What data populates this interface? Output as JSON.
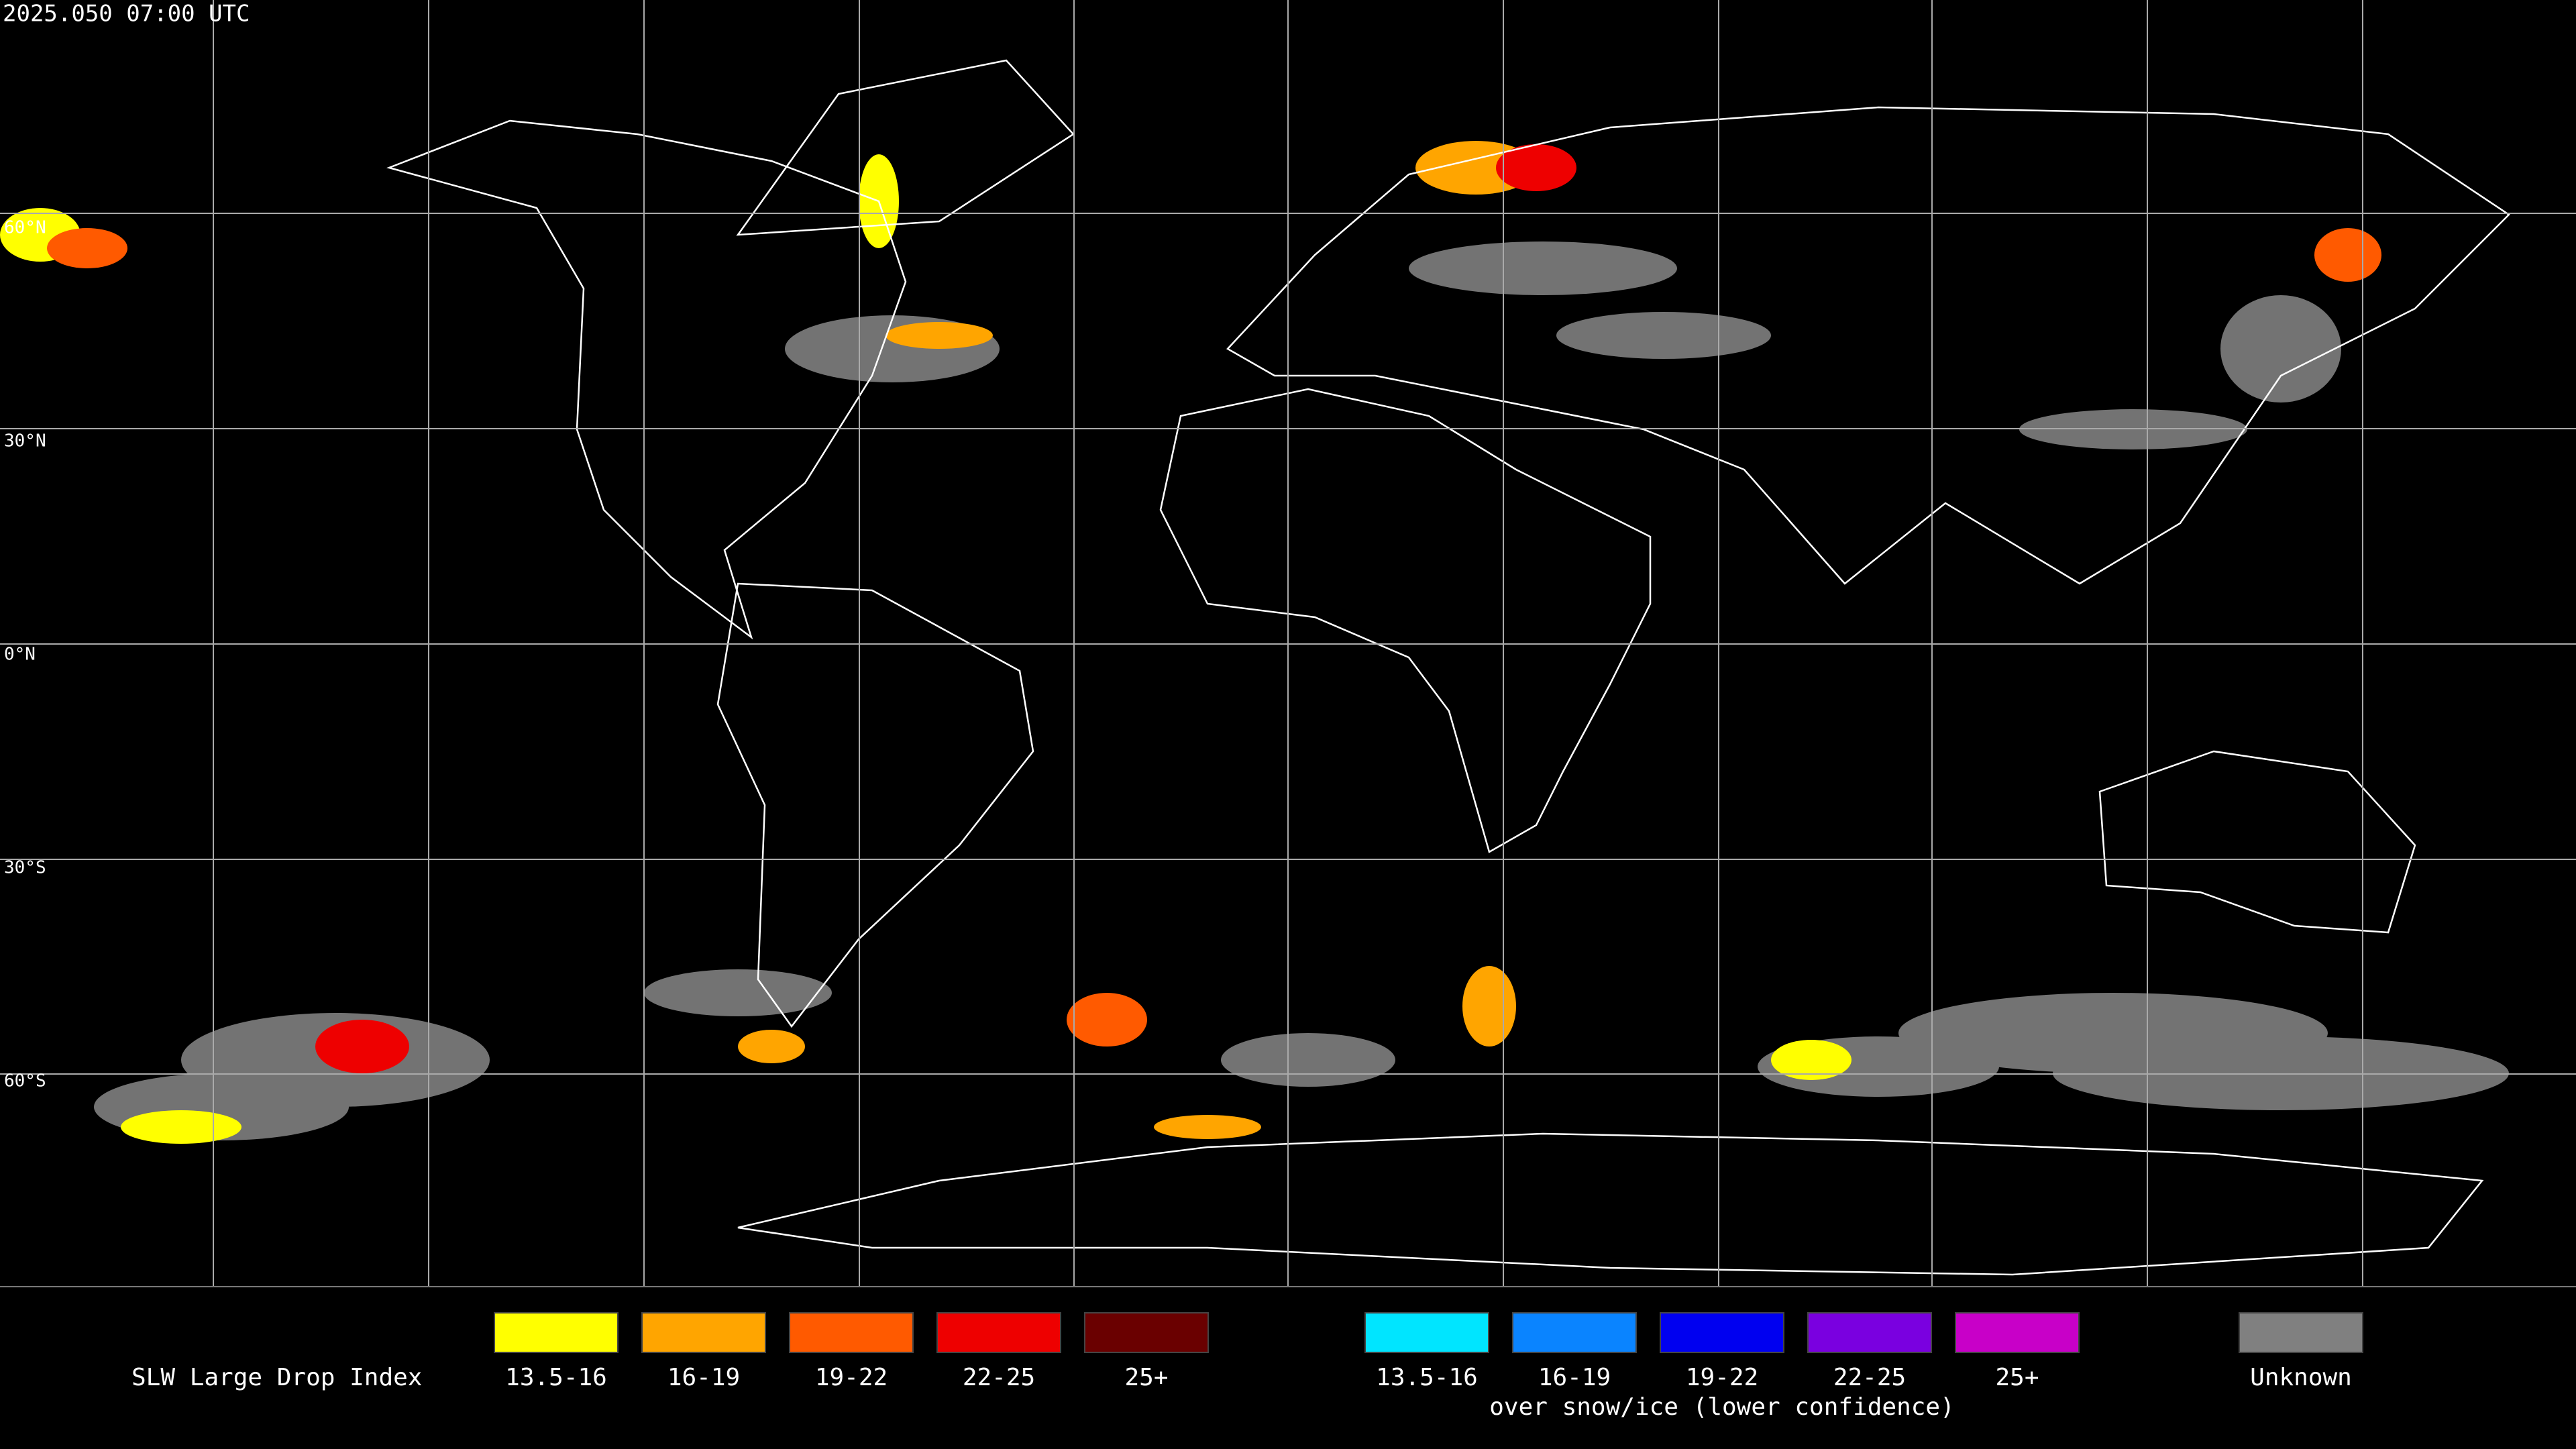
{
  "header": {
    "timestamp": "2025.050 07:00 UTC"
  },
  "map": {
    "latitude_labels": [
      "60°N",
      "30°N",
      "0°N",
      "30°S",
      "60°S"
    ]
  },
  "legend": {
    "title": "SLW Large Drop Index",
    "groups": [
      {
        "items": [
          {
            "label": "13.5-16",
            "color": "#ffff00"
          },
          {
            "label": "16-19",
            "color": "#ffa500"
          },
          {
            "label": "19-22",
            "color": "#ff5a00"
          },
          {
            "label": "22-25",
            "color": "#ee0000"
          },
          {
            "label": "25+",
            "color": "#6a0000"
          }
        ]
      },
      {
        "items": [
          {
            "label": "13.5-16",
            "color": "#00e5ff"
          },
          {
            "label": "16-19",
            "color": "#0a84ff"
          },
          {
            "label": "19-22",
            "color": "#0000f0"
          },
          {
            "label": "22-25",
            "color": "#7a00e0"
          },
          {
            "label": "25+",
            "color": "#c800c8"
          }
        ],
        "note": "over snow/ice (lower confidence)"
      },
      {
        "items": [
          {
            "label": "Unknown",
            "color": "#808080"
          }
        ]
      }
    ]
  }
}
